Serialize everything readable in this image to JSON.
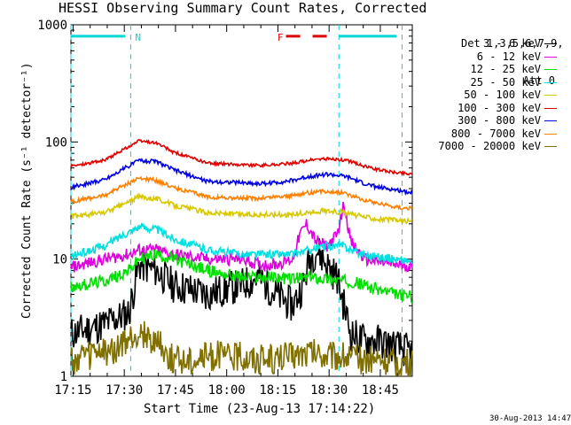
{
  "chart_data": {
    "type": "line",
    "title": "HESSI Observing Summary Count Rates, Corrected",
    "xlabel": "Start Time (23-Aug-13 17:14:22)",
    "ylabel": "Corrected Count Rate (s⁻¹ detector⁻¹)",
    "yscale": "log",
    "ylim": [
      1,
      1000
    ],
    "xlim_minutes": [
      0,
      100
    ],
    "x_tick_labels": [
      "17:15",
      "17:30",
      "17:45",
      "18:00",
      "18:15",
      "18:30",
      "18:45"
    ],
    "y_tick_labels": [
      "1",
      "10",
      "100",
      "1000"
    ],
    "legend_header": [
      "Det 1,3,5,6,7,9,",
      "Att 0"
    ],
    "legend_placement": "right",
    "grid": false,
    "series": [
      {
        "name": "3 - 6 keV",
        "color": "#000000",
        "x": [
          0,
          10,
          17,
          20,
          25,
          30,
          40,
          50,
          55,
          60,
          65,
          68,
          70,
          72,
          75,
          78,
          82,
          86,
          90,
          95,
          100
        ],
        "values": [
          2.3,
          2.8,
          3.5,
          9,
          8,
          6,
          5,
          6,
          7,
          5,
          4,
          6,
          10,
          12,
          9,
          7,
          2.3,
          2.0,
          2.0,
          1.8,
          1.6
        ]
      },
      {
        "name": "6 - 12 keV",
        "color": "#e000e0",
        "x": [
          0,
          10,
          17,
          20,
          25,
          30,
          40,
          50,
          55,
          60,
          65,
          67,
          69,
          72,
          75,
          78,
          80,
          82,
          86,
          90,
          95,
          100
        ],
        "values": [
          8.5,
          10,
          11,
          12,
          12,
          11,
          10,
          10,
          9,
          9,
          10,
          16,
          20,
          14,
          13,
          16,
          30,
          14,
          10,
          9.5,
          9,
          8.7
        ]
      },
      {
        "name": "12 - 25 keV",
        "color": "#00e000",
        "x": [
          0,
          10,
          17,
          20,
          25,
          30,
          40,
          50,
          55,
          60,
          65,
          70,
          75,
          80,
          82,
          86,
          90,
          95,
          100
        ],
        "values": [
          5.8,
          6.5,
          8,
          10,
          11,
          10,
          8,
          7,
          7,
          7,
          6.8,
          7,
          6.8,
          6.5,
          6.5,
          6,
          5.5,
          5,
          4.8
        ]
      },
      {
        "name": "25 - 50 keV",
        "color": "#00e0e0",
        "x": [
          0,
          10,
          15,
          20,
          25,
          30,
          40,
          50,
          55,
          60,
          65,
          70,
          75,
          80,
          82,
          86,
          90,
          95,
          100
        ],
        "values": [
          10.5,
          13,
          16,
          19,
          18,
          15,
          12,
          11,
          11,
          11,
          11,
          12,
          13,
          13,
          12,
          11,
          10.5,
          10,
          9.5
        ]
      },
      {
        "name": "50 - 100 keV",
        "color": "#d8c800",
        "x": [
          0,
          10,
          15,
          20,
          25,
          30,
          40,
          50,
          55,
          60,
          65,
          70,
          75,
          80,
          82,
          86,
          90,
          95,
          100
        ],
        "values": [
          23,
          25,
          29,
          34,
          33,
          29,
          25,
          24,
          24,
          24,
          24,
          25,
          26,
          25,
          24,
          23,
          22,
          21.5,
          21
        ]
      },
      {
        "name": "100 - 300 keV",
        "color": "#e00000",
        "x": [
          0,
          10,
          15,
          20,
          25,
          30,
          40,
          50,
          55,
          60,
          65,
          70,
          75,
          80,
          82,
          86,
          90,
          95,
          100
        ],
        "values": [
          62,
          70,
          85,
          102,
          98,
          82,
          66,
          64,
          63,
          64,
          66,
          70,
          72,
          70,
          68,
          62,
          58,
          55,
          53
        ]
      },
      {
        "name": "300 - 800 keV",
        "color": "#0000e0",
        "x": [
          0,
          10,
          15,
          20,
          25,
          30,
          40,
          50,
          55,
          60,
          65,
          70,
          75,
          80,
          82,
          86,
          90,
          95,
          100
        ],
        "values": [
          41,
          48,
          58,
          70,
          68,
          58,
          46,
          45,
          44,
          45,
          47,
          51,
          53,
          51,
          49,
          44,
          41,
          39,
          37
        ]
      },
      {
        "name": "800 - 7000 keV",
        "color": "#ff8000",
        "x": [
          0,
          10,
          15,
          20,
          25,
          30,
          40,
          50,
          55,
          60,
          65,
          70,
          75,
          80,
          82,
          86,
          90,
          95,
          100
        ],
        "values": [
          31,
          35,
          42,
          49,
          47,
          41,
          34,
          33,
          33,
          34,
          35,
          37,
          38,
          37,
          35,
          32,
          30,
          28,
          27
        ]
      },
      {
        "name": "7000 - 20000 keV",
        "color": "#807000",
        "x": [
          0,
          5,
          10,
          15,
          20,
          25,
          30,
          35,
          40,
          50,
          55,
          60,
          65,
          70,
          75,
          80,
          82,
          86,
          90,
          95,
          100
        ],
        "values": [
          1.3,
          1.5,
          1.6,
          1.8,
          2.3,
          2.0,
          1.4,
          1.4,
          1.5,
          1.5,
          1.4,
          1.4,
          1.5,
          1.6,
          1.5,
          1.5,
          1.4,
          1.4,
          1.4,
          1.3,
          1.3
        ]
      }
    ],
    "annotations": {
      "night_marks": [
        {
          "label": "N",
          "x_start": 0,
          "x_end": 17.5
        },
        {
          "label": "",
          "x_start": 78.5,
          "x_end": 97
        }
      ],
      "flare_mark": {
        "label": "F",
        "x_start": 63,
        "x_end": 77
      },
      "vertical_dashed_x": [
        0,
        17.5,
        78.5,
        97
      ]
    }
  },
  "timestamp": "30-Aug-2013 14:47"
}
